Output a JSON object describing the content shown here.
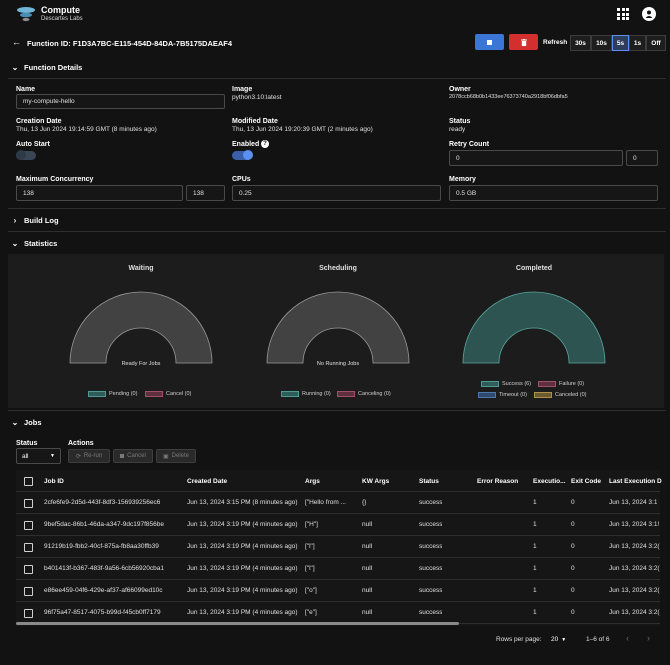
{
  "app": {
    "title": "Compute",
    "subtitle": "Descartes Labs",
    "user_initial": "E"
  },
  "header": {
    "function_id_label": "Function ID: F1D3A7BC-E115-454D-84DA-7B5175DAEAF4",
    "refresh_label": "Refresh",
    "intervals": [
      "30s",
      "10s",
      "5s",
      "1s",
      "Off"
    ],
    "selected_interval": "5s"
  },
  "details": {
    "section_title": "Function Details",
    "name_label": "Name",
    "name_value": "my-compute-hello",
    "image_label": "Image",
    "image_value": "python3.10:latest",
    "owner_label": "Owner",
    "owner_value": "2078ccb68b0b1433ee76373740a2918bf06dbfa5",
    "creation_label": "Creation Date",
    "creation_value": "Thu, 13 Jun 2024 19:14:59 GMT (8 minutes ago)",
    "modified_label": "Modified Date",
    "modified_value": "Thu, 13 Jun 2024 19:20:39 GMT (2 minutes ago)",
    "status_label": "Status",
    "status_value": "ready",
    "auto_start_label": "Auto Start",
    "auto_start": false,
    "enabled_label": "Enabled",
    "enabled": true,
    "retry_label": "Retry Count",
    "retry_value": "0",
    "retry_value2": "0",
    "max_conc_label": "Maximum Concurrency",
    "max_conc_value": "138",
    "max_conc_value2": "138",
    "cpus_label": "CPUs",
    "cpus_value": "0.25",
    "memory_label": "Memory",
    "memory_value": "0.5 GB"
  },
  "build_log": {
    "section_title": "Build Log"
  },
  "statistics": {
    "section_title": "Statistics",
    "waiting": {
      "title": "Waiting",
      "center": "Ready For Jobs",
      "legend": [
        "Pending (0)",
        "Cancel (0)"
      ]
    },
    "scheduling": {
      "title": "Scheduling",
      "center": "No Running Jobs",
      "legend": [
        "Running (0)",
        "Canceling (0)"
      ]
    },
    "completed": {
      "title": "Completed",
      "legend": [
        "Success (6)",
        "Failure (0)",
        "Timeout (0)",
        "Canceled (0)"
      ]
    },
    "colors": {
      "pending": "#2f5e5a",
      "cancel": "#5e2f3c",
      "running": "#2f5e5a",
      "canceling": "#5e2f3c",
      "success": "#2f5e5a",
      "failure": "#5e2f3c",
      "timeout": "#2f4a6e",
      "canceled": "#6e5a2f"
    }
  },
  "jobs": {
    "section_title": "Jobs",
    "status_label": "Status",
    "status_value": "all",
    "actions_label": "Actions",
    "rerun_label": "Re-run",
    "cancel_label": "Cancel",
    "delete_label": "Delete",
    "columns": [
      "Job ID",
      "Created Date",
      "Args",
      "KW Args",
      "Status",
      "Error Reason",
      "Executio...",
      "Exit Code",
      "Last Execution D"
    ],
    "rows": [
      [
        "2cfe6fe9-2d5d-443f-8df3-156939256ec6",
        "Jun 13, 2024 3:15 PM (8 minutes ago)",
        "[\"Hello from ...",
        "{}",
        "success",
        "",
        "1",
        "0",
        "Jun 13, 2024 3:1"
      ],
      [
        "9bef5dac-86b1-46da-a347-9dc197f856be",
        "Jun 13, 2024 3:19 PM (4 minutes ago)",
        "[\"H\"]",
        "null",
        "success",
        "",
        "1",
        "0",
        "Jun 13, 2024 3:1!"
      ],
      [
        "91219b19-fbb2-40cf-875a-fb8aa30ffb39",
        "Jun 13, 2024 3:19 PM (4 minutes ago)",
        "[\"l\"]",
        "null",
        "success",
        "",
        "1",
        "0",
        "Jun 13, 2024 3:2("
      ],
      [
        "b401413f-b367-483f-9a56-6cb56920cba1",
        "Jun 13, 2024 3:19 PM (4 minutes ago)",
        "[\"l\"]",
        "null",
        "success",
        "",
        "1",
        "0",
        "Jun 13, 2024 3:2("
      ],
      [
        "e86ee459-04f6-429e-af37-af66099ed10c",
        "Jun 13, 2024 3:19 PM (4 minutes ago)",
        "[\"o\"]",
        "null",
        "success",
        "",
        "1",
        "0",
        "Jun 13, 2024 3:2("
      ],
      [
        "96f75a47-8517-4075-b99d-f45cb0ff7179",
        "Jun 13, 2024 3:19 PM (4 minutes ago)",
        "[\"e\"]",
        "null",
        "success",
        "",
        "1",
        "0",
        "Jun 13, 2024 3:2("
      ]
    ],
    "rows_per_page_label": "Rows per page:",
    "rows_per_page_value": "20",
    "range_label": "1–6 of 6"
  }
}
